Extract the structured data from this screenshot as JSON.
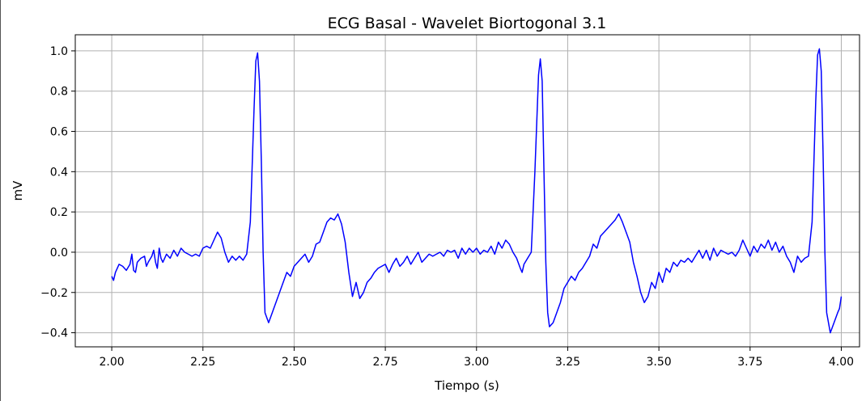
{
  "chart_data": {
    "type": "line",
    "title": "ECG Basal - Wavelet Biortogonal 3.1",
    "xlabel": "Tiempo (s)",
    "ylabel": "mV",
    "xlim": [
      1.9,
      4.05
    ],
    "ylim": [
      -0.47,
      1.08
    ],
    "xticks": [
      2.0,
      2.25,
      2.5,
      2.75,
      3.0,
      3.25,
      3.5,
      3.75,
      4.0
    ],
    "xtick_labels": [
      "2.00",
      "2.25",
      "2.50",
      "2.75",
      "3.00",
      "3.25",
      "3.50",
      "3.75",
      "4.00"
    ],
    "yticks": [
      -0.4,
      -0.2,
      0.0,
      0.2,
      0.4,
      0.6,
      0.8,
      1.0
    ],
    "ytick_labels": [
      "−0.4",
      "−0.2",
      "0.0",
      "0.2",
      "0.4",
      "0.6",
      "0.8",
      "1.0"
    ],
    "grid": true,
    "series": [
      {
        "color": "#0000ff",
        "points": [
          [
            2.0,
            -0.12
          ],
          [
            2.005,
            -0.14
          ],
          [
            2.01,
            -0.1
          ],
          [
            2.02,
            -0.06
          ],
          [
            2.03,
            -0.07
          ],
          [
            2.04,
            -0.09
          ],
          [
            2.05,
            -0.06
          ],
          [
            2.055,
            -0.01
          ],
          [
            2.06,
            -0.09
          ],
          [
            2.065,
            -0.1
          ],
          [
            2.07,
            -0.05
          ],
          [
            2.08,
            -0.03
          ],
          [
            2.09,
            -0.02
          ],
          [
            2.095,
            -0.07
          ],
          [
            2.1,
            -0.05
          ],
          [
            2.11,
            -0.02
          ],
          [
            2.115,
            0.01
          ],
          [
            2.12,
            -0.05
          ],
          [
            2.125,
            -0.08
          ],
          [
            2.13,
            0.02
          ],
          [
            2.135,
            -0.03
          ],
          [
            2.14,
            -0.05
          ],
          [
            2.15,
            -0.01
          ],
          [
            2.16,
            -0.03
          ],
          [
            2.17,
            0.01
          ],
          [
            2.18,
            -0.02
          ],
          [
            2.19,
            0.02
          ],
          [
            2.2,
            0.0
          ],
          [
            2.21,
            -0.01
          ],
          [
            2.22,
            -0.02
          ],
          [
            2.23,
            -0.01
          ],
          [
            2.24,
            -0.02
          ],
          [
            2.25,
            0.02
          ],
          [
            2.26,
            0.03
          ],
          [
            2.27,
            0.02
          ],
          [
            2.28,
            0.06
          ],
          [
            2.29,
            0.1
          ],
          [
            2.3,
            0.07
          ],
          [
            2.31,
            0.0
          ],
          [
            2.32,
            -0.05
          ],
          [
            2.33,
            -0.02
          ],
          [
            2.34,
            -0.04
          ],
          [
            2.35,
            -0.02
          ],
          [
            2.36,
            -0.04
          ],
          [
            2.37,
            -0.01
          ],
          [
            2.38,
            0.15
          ],
          [
            2.39,
            0.7
          ],
          [
            2.395,
            0.95
          ],
          [
            2.4,
            0.99
          ],
          [
            2.405,
            0.85
          ],
          [
            2.41,
            0.45
          ],
          [
            2.415,
            0.0
          ],
          [
            2.42,
            -0.3
          ],
          [
            2.43,
            -0.35
          ],
          [
            2.44,
            -0.3
          ],
          [
            2.45,
            -0.25
          ],
          [
            2.46,
            -0.2
          ],
          [
            2.47,
            -0.15
          ],
          [
            2.48,
            -0.1
          ],
          [
            2.49,
            -0.12
          ],
          [
            2.5,
            -0.07
          ],
          [
            2.51,
            -0.05
          ],
          [
            2.52,
            -0.03
          ],
          [
            2.53,
            -0.01
          ],
          [
            2.54,
            -0.05
          ],
          [
            2.55,
            -0.02
          ],
          [
            2.56,
            0.04
          ],
          [
            2.57,
            0.05
          ],
          [
            2.58,
            0.1
          ],
          [
            2.59,
            0.15
          ],
          [
            2.6,
            0.17
          ],
          [
            2.61,
            0.16
          ],
          [
            2.62,
            0.19
          ],
          [
            2.63,
            0.14
          ],
          [
            2.64,
            0.05
          ],
          [
            2.65,
            -0.1
          ],
          [
            2.66,
            -0.22
          ],
          [
            2.67,
            -0.15
          ],
          [
            2.68,
            -0.23
          ],
          [
            2.69,
            -0.2
          ],
          [
            2.7,
            -0.15
          ],
          [
            2.71,
            -0.13
          ],
          [
            2.72,
            -0.1
          ],
          [
            2.73,
            -0.08
          ],
          [
            2.74,
            -0.07
          ],
          [
            2.75,
            -0.06
          ],
          [
            2.76,
            -0.1
          ],
          [
            2.77,
            -0.06
          ],
          [
            2.78,
            -0.03
          ],
          [
            2.79,
            -0.07
          ],
          [
            2.8,
            -0.05
          ],
          [
            2.81,
            -0.02
          ],
          [
            2.82,
            -0.06
          ],
          [
            2.83,
            -0.03
          ],
          [
            2.84,
            0.0
          ],
          [
            2.85,
            -0.05
          ],
          [
            2.86,
            -0.03
          ],
          [
            2.87,
            -0.01
          ],
          [
            2.88,
            -0.02
          ],
          [
            2.89,
            -0.01
          ],
          [
            2.9,
            0.0
          ],
          [
            2.91,
            -0.02
          ],
          [
            2.92,
            0.01
          ],
          [
            2.93,
            0.0
          ],
          [
            2.94,
            0.01
          ],
          [
            2.95,
            -0.03
          ],
          [
            2.96,
            0.02
          ],
          [
            2.97,
            -0.01
          ],
          [
            2.98,
            0.02
          ],
          [
            2.99,
            0.0
          ],
          [
            3.0,
            0.02
          ],
          [
            3.01,
            -0.01
          ],
          [
            3.02,
            0.01
          ],
          [
            3.03,
            0.0
          ],
          [
            3.04,
            0.03
          ],
          [
            3.05,
            -0.01
          ],
          [
            3.06,
            0.05
          ],
          [
            3.07,
            0.02
          ],
          [
            3.08,
            0.06
          ],
          [
            3.09,
            0.04
          ],
          [
            3.1,
            0.0
          ],
          [
            3.11,
            -0.03
          ],
          [
            3.12,
            -0.08
          ],
          [
            3.125,
            -0.1
          ],
          [
            3.13,
            -0.06
          ],
          [
            3.14,
            -0.03
          ],
          [
            3.15,
            0.0
          ],
          [
            3.16,
            0.4
          ],
          [
            3.17,
            0.88
          ],
          [
            3.175,
            0.96
          ],
          [
            3.18,
            0.85
          ],
          [
            3.185,
            0.4
          ],
          [
            3.19,
            -0.05
          ],
          [
            3.195,
            -0.3
          ],
          [
            3.2,
            -0.37
          ],
          [
            3.21,
            -0.35
          ],
          [
            3.22,
            -0.3
          ],
          [
            3.23,
            -0.25
          ],
          [
            3.24,
            -0.18
          ],
          [
            3.25,
            -0.15
          ],
          [
            3.26,
            -0.12
          ],
          [
            3.27,
            -0.14
          ],
          [
            3.28,
            -0.1
          ],
          [
            3.29,
            -0.08
          ],
          [
            3.3,
            -0.05
          ],
          [
            3.31,
            -0.02
          ],
          [
            3.32,
            0.04
          ],
          [
            3.33,
            0.02
          ],
          [
            3.34,
            0.08
          ],
          [
            3.35,
            0.1
          ],
          [
            3.36,
            0.12
          ],
          [
            3.37,
            0.14
          ],
          [
            3.38,
            0.16
          ],
          [
            3.39,
            0.19
          ],
          [
            3.4,
            0.15
          ],
          [
            3.41,
            0.1
          ],
          [
            3.42,
            0.05
          ],
          [
            3.43,
            -0.05
          ],
          [
            3.44,
            -0.12
          ],
          [
            3.45,
            -0.2
          ],
          [
            3.46,
            -0.25
          ],
          [
            3.47,
            -0.22
          ],
          [
            3.48,
            -0.15
          ],
          [
            3.49,
            -0.18
          ],
          [
            3.5,
            -0.1
          ],
          [
            3.51,
            -0.15
          ],
          [
            3.52,
            -0.08
          ],
          [
            3.53,
            -0.1
          ],
          [
            3.54,
            -0.05
          ],
          [
            3.55,
            -0.07
          ],
          [
            3.56,
            -0.04
          ],
          [
            3.57,
            -0.05
          ],
          [
            3.58,
            -0.03
          ],
          [
            3.59,
            -0.05
          ],
          [
            3.6,
            -0.02
          ],
          [
            3.61,
            0.01
          ],
          [
            3.62,
            -0.03
          ],
          [
            3.63,
            0.01
          ],
          [
            3.64,
            -0.04
          ],
          [
            3.65,
            0.02
          ],
          [
            3.66,
            -0.02
          ],
          [
            3.67,
            0.01
          ],
          [
            3.68,
            0.0
          ],
          [
            3.69,
            -0.01
          ],
          [
            3.7,
            0.0
          ],
          [
            3.71,
            -0.02
          ],
          [
            3.72,
            0.01
          ],
          [
            3.73,
            0.06
          ],
          [
            3.74,
            0.02
          ],
          [
            3.75,
            -0.02
          ],
          [
            3.76,
            0.03
          ],
          [
            3.77,
            0.0
          ],
          [
            3.78,
            0.04
          ],
          [
            3.79,
            0.02
          ],
          [
            3.8,
            0.06
          ],
          [
            3.81,
            0.01
          ],
          [
            3.82,
            0.05
          ],
          [
            3.83,
            0.0
          ],
          [
            3.84,
            0.03
          ],
          [
            3.85,
            -0.02
          ],
          [
            3.86,
            -0.05
          ],
          [
            3.87,
            -0.1
          ],
          [
            3.88,
            -0.02
          ],
          [
            3.89,
            -0.05
          ],
          [
            3.9,
            -0.03
          ],
          [
            3.91,
            -0.02
          ],
          [
            3.92,
            0.15
          ],
          [
            3.93,
            0.75
          ],
          [
            3.935,
            0.98
          ],
          [
            3.94,
            1.01
          ],
          [
            3.945,
            0.9
          ],
          [
            3.95,
            0.5
          ],
          [
            3.955,
            0.0
          ],
          [
            3.96,
            -0.3
          ],
          [
            3.97,
            -0.4
          ],
          [
            3.98,
            -0.35
          ],
          [
            3.99,
            -0.3
          ],
          [
            3.995,
            -0.28
          ],
          [
            4.0,
            -0.22
          ]
        ]
      }
    ]
  }
}
